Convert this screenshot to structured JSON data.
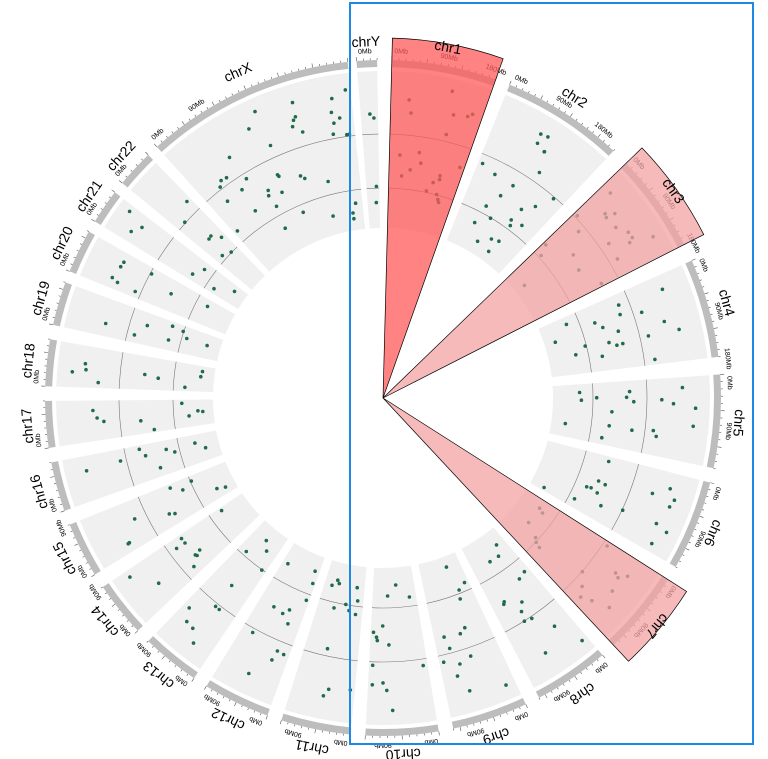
{
  "chart_data": {
    "type": "scatter",
    "layout": "circular",
    "chromosomes": [
      {
        "name": "chr1",
        "ticks": [
          "0Mb",
          "90Mb",
          "180Mb"
        ]
      },
      {
        "name": "chr2",
        "ticks": [
          "0Mb",
          "90Mb",
          "180Mb"
        ]
      },
      {
        "name": "chr3",
        "ticks": [
          "0Mb",
          "90Mb",
          "180Mb"
        ]
      },
      {
        "name": "chr4",
        "ticks": [
          "0Mb",
          "90Mb",
          "180Mb"
        ]
      },
      {
        "name": "chr5",
        "ticks": [
          "0Mb",
          "90Mb",
          "180Mb"
        ]
      },
      {
        "name": "chr6",
        "ticks": [
          "0Mb",
          "90Mb"
        ]
      },
      {
        "name": "chr7",
        "ticks": [
          "0Mb",
          "90Mb"
        ]
      },
      {
        "name": "chr8",
        "ticks": [
          "0Mb",
          "90Mb"
        ]
      },
      {
        "name": "chr9",
        "ticks": [
          "0Mb",
          "90Mb"
        ]
      },
      {
        "name": "chr10",
        "ticks": [
          "0Mb",
          "90Mb"
        ]
      },
      {
        "name": "chr11",
        "ticks": [
          "0Mb",
          "90Mb"
        ]
      },
      {
        "name": "chr12",
        "ticks": [
          "0Mb",
          "90Mb"
        ]
      },
      {
        "name": "chr13",
        "ticks": [
          "0Mb",
          "90Mb"
        ]
      },
      {
        "name": "chr14",
        "ticks": [
          "0Mb",
          "90Mb"
        ]
      },
      {
        "name": "chr15",
        "ticks": [
          "0Mb",
          "90Mb"
        ]
      },
      {
        "name": "chr16",
        "ticks": [
          "0Mb",
          "90Mb"
        ]
      },
      {
        "name": "chr17",
        "ticks": [
          "0Mb"
        ]
      },
      {
        "name": "chr18",
        "ticks": [
          "0Mb"
        ]
      },
      {
        "name": "chr19",
        "ticks": [
          "0Mb"
        ]
      },
      {
        "name": "chr20",
        "ticks": [
          "0Mb"
        ]
      },
      {
        "name": "chr21",
        "ticks": [
          "0Mb"
        ]
      },
      {
        "name": "chr22",
        "ticks": [
          "0Mb"
        ]
      },
      {
        "name": "chrX",
        "ticks": [
          "0Mb",
          "90Mb"
        ]
      },
      {
        "name": "chrY",
        "ticks": [
          "0Mb"
        ]
      }
    ],
    "highlights": [
      {
        "chromosome": "chr1",
        "color": "#ff5a5a"
      },
      {
        "chromosome": "chr3",
        "color": "#f3a3a3"
      },
      {
        "chromosome": "chr7",
        "color": "#f3a3a3"
      }
    ],
    "point_color": "#1f6b4a",
    "selection_box_color": "#1e88e5"
  }
}
